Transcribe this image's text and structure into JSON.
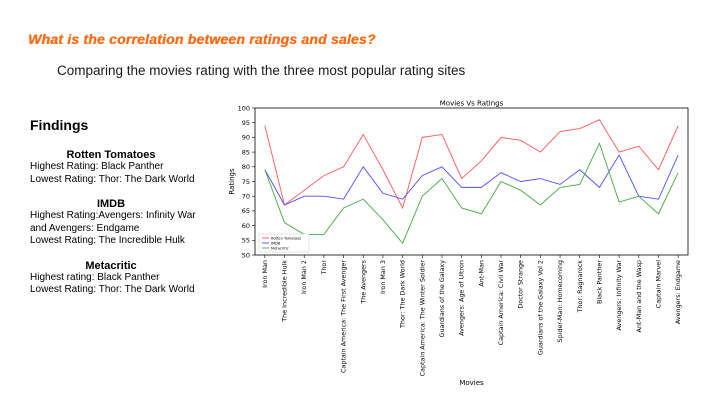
{
  "slide": {
    "title": "What is  the correlation between ratings and sales?",
    "subtitle": "Comparing the movies rating with the three most popular rating sites"
  },
  "findings": {
    "heading": "Findings",
    "sites": [
      {
        "name": "Rotten Tomatoes",
        "lines": [
          "Highest Rating: Black Panther",
          "Lowest Rating: Thor: The Dark World"
        ]
      },
      {
        "name": "IMDB",
        "lines": [
          "Highest Rating:Avengers: Infinity War",
          "and Avengers: Endgame",
          "Lowest Rating: The Incredible Hulk"
        ]
      },
      {
        "name": "Metacritic",
        "lines": [
          "Highest rating: Black Panther",
          "Lowest Rating: Thor: The Dark World"
        ]
      }
    ]
  },
  "chart_data": {
    "type": "line",
    "title": "Movies Vs Ratings",
    "xlabel": "Movies",
    "ylabel": "Ratings",
    "ylim": [
      50,
      100
    ],
    "yticks": [
      50,
      55,
      60,
      65,
      70,
      75,
      80,
      85,
      90,
      95,
      100
    ],
    "legend_position": "lower-left",
    "categories": [
      "Iron Man",
      "The Incredible Hulk",
      "Iron Man 2",
      "Thor",
      "Captain America: The First Avenger",
      "The Avengers",
      "Iron Man 3",
      "Thor: The Dark World",
      "Captain America: The Winter Soldier",
      "Guardians of the Galaxy",
      "Avengers: Age of Ultron",
      "Ant-Man",
      "Captain America: Civil War",
      "Doctor Strange",
      "Guardians of the Galaxy Vol 2",
      "Spider-Man: Homecoming",
      "Thor: Ragnarock",
      "Black Panther",
      "Avengers: Infinity War",
      "Ant-Man and the Wasp",
      "Captain Marvel",
      "Avengers: Endgame"
    ],
    "series": [
      {
        "name": "Rotten Tomatoes",
        "color": "#ff5555",
        "values": [
          94,
          67,
          72,
          77,
          80,
          91,
          79,
          66,
          90,
          91,
          76,
          82,
          90,
          89,
          85,
          92,
          93,
          96,
          85,
          87,
          79,
          94
        ]
      },
      {
        "name": "IMDB",
        "color": "#4d4dff",
        "values": [
          79,
          67,
          70,
          70,
          69,
          80,
          71,
          69,
          77,
          80,
          73,
          73,
          78,
          75,
          76,
          74,
          79,
          73,
          84,
          70,
          69,
          84
        ]
      },
      {
        "name": "Metacritic",
        "color": "#44aa44",
        "values": [
          79,
          61,
          57,
          57,
          66,
          69,
          62,
          54,
          70,
          76,
          66,
          64,
          75,
          72,
          67,
          73,
          74,
          88,
          68,
          70,
          64,
          78
        ]
      }
    ]
  }
}
